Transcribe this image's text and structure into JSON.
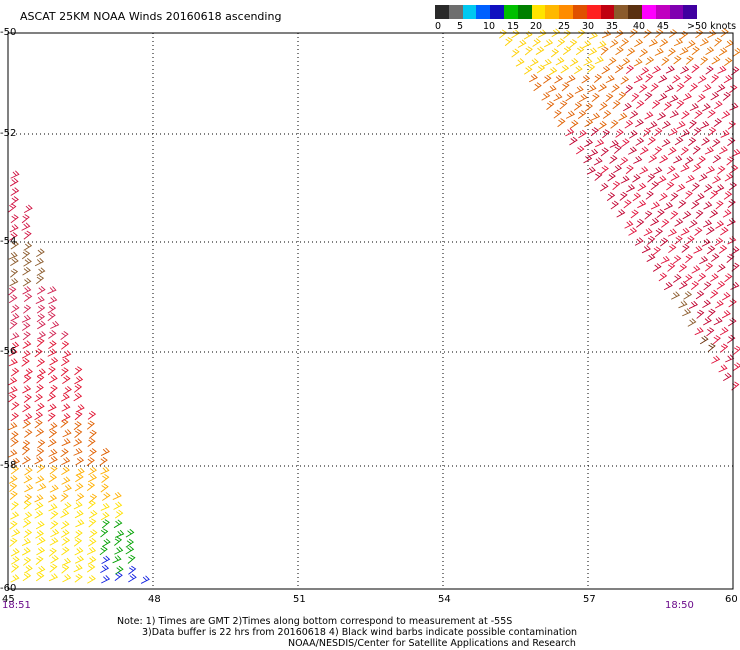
{
  "title": "ASCAT 25KM NOAA Winds 20160618 ascending",
  "colorbar": {
    "labels": [
      "0",
      "5",
      "10",
      "15",
      "20",
      "25",
      "30",
      "35",
      "40",
      "45",
      ">50 knots"
    ],
    "colors": [
      "#2a2a2a",
      "#6e6e6e",
      "#00c8f0",
      "#0060ff",
      "#1010c0",
      "#00c000",
      "#008000",
      "#ffe400",
      "#ffb800",
      "#ff8c00",
      "#e05000",
      "#ff2020",
      "#c00010",
      "#8b5a2b",
      "#5a3010",
      "#ff00ff",
      "#c000c0",
      "#8000b0",
      "#4000a0"
    ]
  },
  "map": {
    "lon_ticks": [
      "45",
      "48",
      "51",
      "54",
      "57",
      "60"
    ],
    "lat_ticks": [
      "-50",
      "-52",
      "-54",
      "-56",
      "-58",
      "-60"
    ],
    "time_left": "18:51",
    "time_right": "18:50"
  },
  "notes": {
    "line1": "Note: 1) Times are GMT 2)Times along bottom correspond to measurement at -55S",
    "line2": "3)Data buffer is 22 hrs from 20160618 4) Black wind barbs indicate possible contamination",
    "line3": "NOAA/NESDIS/Center for Satellite Applications and Research"
  }
}
